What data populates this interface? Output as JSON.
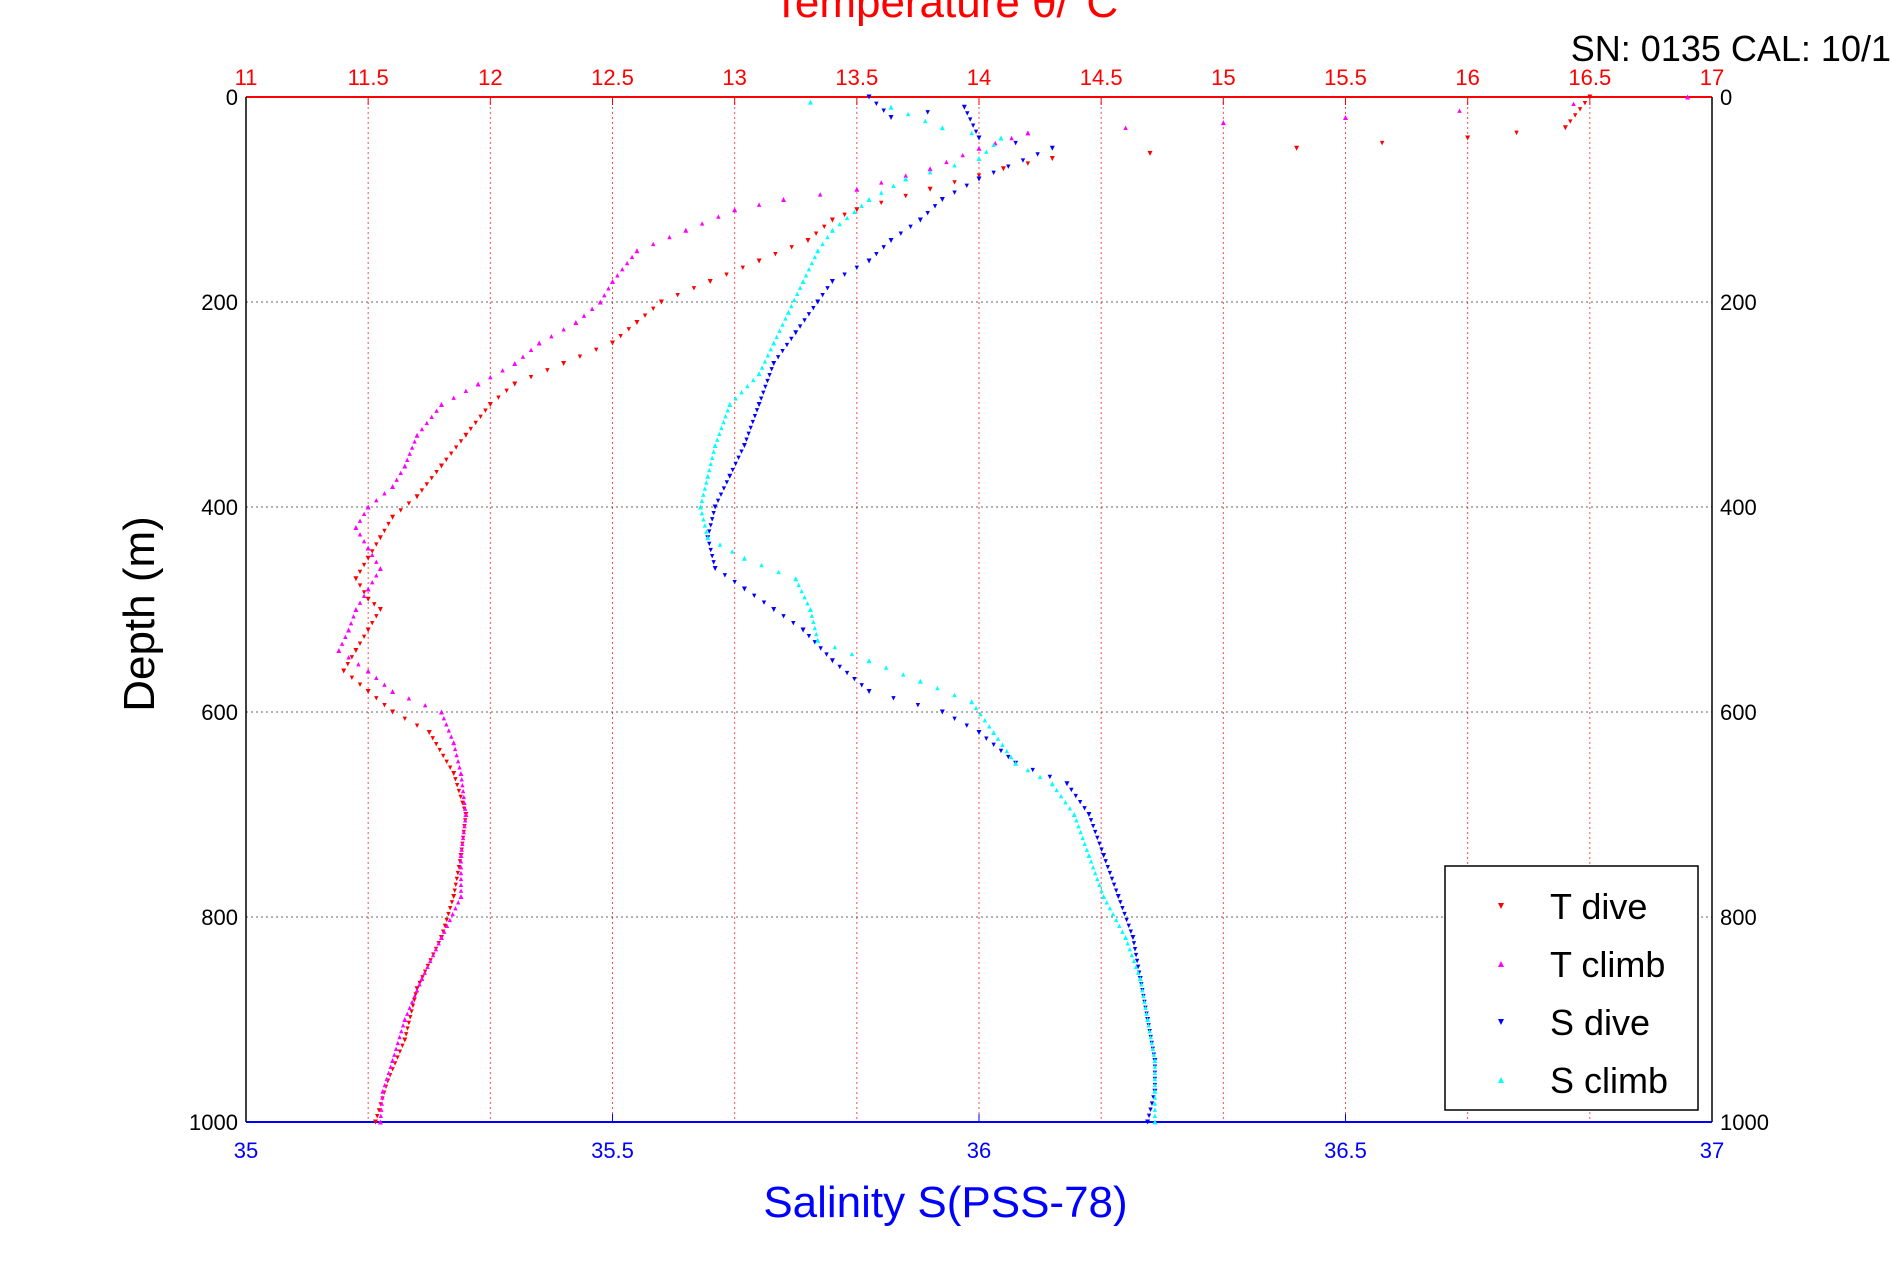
{
  "header": {
    "top_axis_title": "Temperature θ/°C",
    "serial_cal": "SN: 0135  CAL: 10/1"
  },
  "colors": {
    "t_dive": "#ff0000",
    "t_climb": "#ff00ff",
    "s_dive": "#0000ff",
    "s_climb": "#00ffff",
    "temperature_axis": "#ff0000",
    "salinity_axis": "#0000ff",
    "grid": "#000000"
  },
  "chart_data": {
    "type": "scatter",
    "title": "",
    "ylabel": "Depth (m)",
    "xlabel_bottom": "Salinity S(PSS-78)",
    "xlabel_top": "Temperature θ/°C",
    "ylim": [
      1000,
      0
    ],
    "y_reversed": true,
    "y_ticks": [
      "0",
      "200",
      "400",
      "600",
      "800",
      "1000"
    ],
    "salinity_axis": {
      "range": [
        35,
        37
      ],
      "ticks": [
        "35",
        "35.5",
        "36",
        "36.5",
        "37"
      ]
    },
    "temperature_axis": {
      "range": [
        11,
        17
      ],
      "ticks": [
        "11",
        "11.5",
        "12",
        "12.5",
        "13",
        "13.5",
        "14",
        "14.5",
        "15",
        "15.5",
        "16",
        "16.5",
        "17"
      ]
    },
    "grid": true,
    "legend_position": "bottom-right",
    "series": [
      {
        "name": "T dive",
        "axis": "temperature",
        "marker": "triangle-down",
        "color": "#ff0000",
        "points": [
          [
            16.5,
            0
          ],
          [
            16.4,
            30
          ],
          [
            16.0,
            40
          ],
          [
            15.3,
            50
          ],
          [
            14.7,
            55
          ],
          [
            14.3,
            60
          ],
          [
            14.1,
            70
          ],
          [
            13.8,
            90
          ],
          [
            13.5,
            110
          ],
          [
            13.4,
            120
          ],
          [
            13.3,
            140
          ],
          [
            13.1,
            160
          ],
          [
            12.9,
            180
          ],
          [
            12.7,
            200
          ],
          [
            12.6,
            220
          ],
          [
            12.5,
            240
          ],
          [
            12.3,
            260
          ],
          [
            12.1,
            280
          ],
          [
            12.0,
            300
          ],
          [
            11.9,
            330
          ],
          [
            11.8,
            360
          ],
          [
            11.7,
            390
          ],
          [
            11.6,
            410
          ],
          [
            11.55,
            430
          ],
          [
            11.5,
            450
          ],
          [
            11.45,
            470
          ],
          [
            11.5,
            490
          ],
          [
            11.55,
            500
          ],
          [
            11.5,
            520
          ],
          [
            11.45,
            540
          ],
          [
            11.4,
            560
          ],
          [
            11.5,
            580
          ],
          [
            11.6,
            600
          ],
          [
            11.75,
            620
          ],
          [
            11.85,
            660
          ],
          [
            11.9,
            700
          ],
          [
            11.88,
            740
          ],
          [
            11.85,
            780
          ],
          [
            11.8,
            820
          ],
          [
            11.7,
            870
          ],
          [
            11.65,
            920
          ],
          [
            11.58,
            960
          ],
          [
            11.53,
            1000
          ]
        ]
      },
      {
        "name": "T climb",
        "axis": "temperature",
        "marker": "triangle-up",
        "color": "#ff00ff",
        "points": [
          [
            16.9,
            0
          ],
          [
            15.5,
            20
          ],
          [
            15.0,
            25
          ],
          [
            14.2,
            35
          ],
          [
            14.0,
            50
          ],
          [
            13.8,
            70
          ],
          [
            13.5,
            90
          ],
          [
            13.2,
            100
          ],
          [
            13.0,
            110
          ],
          [
            12.8,
            130
          ],
          [
            12.6,
            150
          ],
          [
            12.5,
            180
          ],
          [
            12.45,
            200
          ],
          [
            12.35,
            220
          ],
          [
            12.2,
            240
          ],
          [
            12.1,
            260
          ],
          [
            11.95,
            280
          ],
          [
            11.8,
            300
          ],
          [
            11.7,
            330
          ],
          [
            11.65,
            360
          ],
          [
            11.6,
            380
          ],
          [
            11.5,
            400
          ],
          [
            11.45,
            420
          ],
          [
            11.5,
            440
          ],
          [
            11.55,
            460
          ],
          [
            11.5,
            480
          ],
          [
            11.45,
            500
          ],
          [
            11.42,
            520
          ],
          [
            11.38,
            540
          ],
          [
            11.5,
            560
          ],
          [
            11.6,
            580
          ],
          [
            11.8,
            600
          ],
          [
            11.85,
            630
          ],
          [
            11.88,
            660
          ],
          [
            11.9,
            700
          ],
          [
            11.88,
            740
          ],
          [
            11.88,
            780
          ],
          [
            11.8,
            820
          ],
          [
            11.72,
            860
          ],
          [
            11.65,
            900
          ],
          [
            11.6,
            940
          ],
          [
            11.56,
            970
          ],
          [
            11.55,
            1000
          ]
        ]
      },
      {
        "name": "S dive",
        "axis": "salinity",
        "marker": "triangle-down",
        "color": "#0000ff",
        "points": [
          [
            35.85,
            0
          ],
          [
            35.88,
            20
          ],
          [
            35.98,
            10
          ],
          [
            36.0,
            40
          ],
          [
            36.1,
            50
          ],
          [
            36.0,
            80
          ],
          [
            35.95,
            100
          ],
          [
            35.92,
            120
          ],
          [
            35.88,
            140
          ],
          [
            35.85,
            160
          ],
          [
            35.8,
            180
          ],
          [
            35.78,
            200
          ],
          [
            35.75,
            230
          ],
          [
            35.72,
            260
          ],
          [
            35.7,
            300
          ],
          [
            35.68,
            340
          ],
          [
            35.66,
            370
          ],
          [
            35.64,
            400
          ],
          [
            35.63,
            430
          ],
          [
            35.64,
            460
          ],
          [
            35.68,
            480
          ],
          [
            35.72,
            500
          ],
          [
            35.76,
            520
          ],
          [
            35.8,
            550
          ],
          [
            35.85,
            580
          ],
          [
            35.95,
            600
          ],
          [
            36.0,
            620
          ],
          [
            36.05,
            650
          ],
          [
            36.12,
            670
          ],
          [
            36.15,
            700
          ],
          [
            36.17,
            740
          ],
          [
            36.19,
            780
          ],
          [
            36.21,
            820
          ],
          [
            36.22,
            860
          ],
          [
            36.23,
            900
          ],
          [
            36.24,
            940
          ],
          [
            36.24,
            970
          ],
          [
            36.23,
            1000
          ]
        ]
      },
      {
        "name": "S climb",
        "axis": "salinity",
        "marker": "triangle-up",
        "color": "#00ffff",
        "points": [
          [
            35.77,
            5
          ],
          [
            35.88,
            10
          ],
          [
            35.95,
            30
          ],
          [
            36.03,
            40
          ],
          [
            36.0,
            60
          ],
          [
            35.9,
            80
          ],
          [
            35.85,
            100
          ],
          [
            35.8,
            130
          ],
          [
            35.78,
            150
          ],
          [
            35.76,
            180
          ],
          [
            35.74,
            210
          ],
          [
            35.72,
            240
          ],
          [
            35.7,
            270
          ],
          [
            35.66,
            300
          ],
          [
            35.64,
            340
          ],
          [
            35.63,
            370
          ],
          [
            35.62,
            400
          ],
          [
            35.63,
            430
          ],
          [
            35.68,
            450
          ],
          [
            35.75,
            470
          ],
          [
            35.77,
            500
          ],
          [
            35.78,
            530
          ],
          [
            35.85,
            550
          ],
          [
            35.92,
            570
          ],
          [
            35.99,
            590
          ],
          [
            36.02,
            620
          ],
          [
            36.05,
            650
          ],
          [
            36.1,
            670
          ],
          [
            36.13,
            700
          ],
          [
            36.15,
            740
          ],
          [
            36.17,
            780
          ],
          [
            36.2,
            820
          ],
          [
            36.22,
            860
          ],
          [
            36.23,
            900
          ],
          [
            36.24,
            940
          ],
          [
            36.24,
            970
          ],
          [
            36.24,
            1000
          ]
        ]
      }
    ]
  }
}
